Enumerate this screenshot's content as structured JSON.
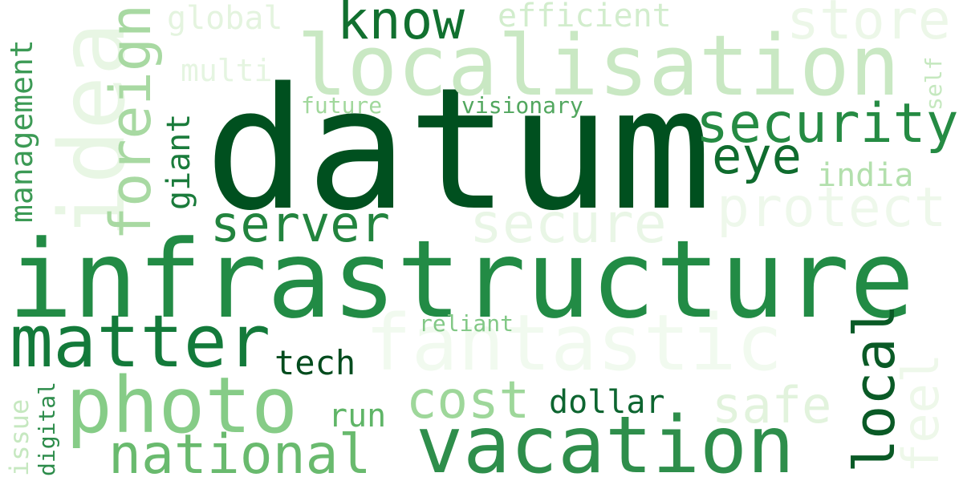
{
  "word_cloud": {
    "words": [
      {
        "text": "datum",
        "color": "#00501f"
      },
      {
        "text": "infrastructure",
        "color": "#228b45"
      },
      {
        "text": "localisation",
        "color": "#c9e8c3"
      },
      {
        "text": "vacation",
        "color": "#2e8e4b"
      },
      {
        "text": "photo",
        "color": "#86cc87"
      },
      {
        "text": "fantastic",
        "color": "#f1faef"
      },
      {
        "text": "matter",
        "color": "#137a3a"
      },
      {
        "text": "national",
        "color": "#69ba6e"
      },
      {
        "text": "security",
        "color": "#258b43"
      },
      {
        "text": "idea",
        "color": "#e8f6e4"
      },
      {
        "text": "protect",
        "color": "#eef8eb"
      },
      {
        "text": "secure",
        "color": "#e9f6e6"
      },
      {
        "text": "server",
        "color": "#22843e"
      },
      {
        "text": "store",
        "color": "#ecf7e8"
      },
      {
        "text": "know",
        "color": "#11702f"
      },
      {
        "text": "eye",
        "color": "#0f6c2e"
      },
      {
        "text": "cost",
        "color": "#9ed79a"
      },
      {
        "text": "safe",
        "color": "#e2f3dd"
      },
      {
        "text": "foreign",
        "color": "#a8d9a2"
      },
      {
        "text": "local",
        "color": "#0a5a26"
      },
      {
        "text": "feel",
        "color": "#eef8ea"
      },
      {
        "text": "efficient",
        "color": "#d2edcd"
      },
      {
        "text": "global",
        "color": "#e4f4df"
      },
      {
        "text": "multi",
        "color": "#e5f5e1"
      },
      {
        "text": "india",
        "color": "#b3e0ad"
      },
      {
        "text": "tech",
        "color": "#004b1d"
      },
      {
        "text": "dollar",
        "color": "#0d6530"
      },
      {
        "text": "run",
        "color": "#5fb567"
      },
      {
        "text": "future",
        "color": "#a1d89c"
      },
      {
        "text": "visionary",
        "color": "#52a75f"
      },
      {
        "text": "reliant",
        "color": "#82c886"
      },
      {
        "text": "management",
        "color": "#3c9a55"
      },
      {
        "text": "giant",
        "color": "#1a7b3b"
      },
      {
        "text": "self",
        "color": "#c5e8bf"
      },
      {
        "text": "issue",
        "color": "#c6e8c0"
      },
      {
        "text": "digital",
        "color": "#2d8c4b"
      }
    ]
  }
}
